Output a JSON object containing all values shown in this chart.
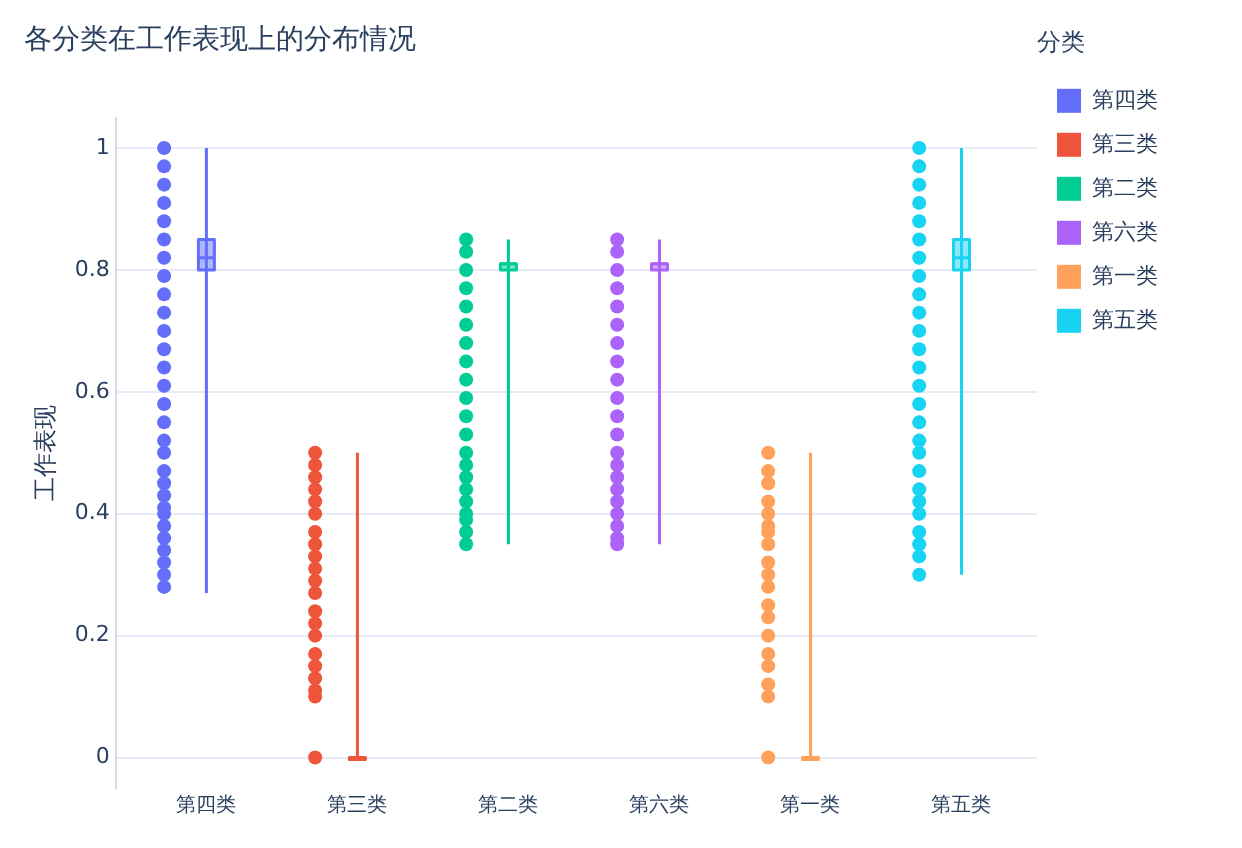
{
  "chart_data": {
    "type": "box",
    "title": "各分类在工作表现上的分布情况",
    "ylabel": "工作表现",
    "legend_title": "分类",
    "categories": [
      "第四类",
      "第三类",
      "第二类",
      "第六类",
      "第一类",
      "第五类"
    ],
    "colors": [
      "#636efa",
      "#ef553b",
      "#00cc96",
      "#ab63fa",
      "#ffa15a",
      "#19d3f3"
    ],
    "boxes": [
      {
        "low": 0.27,
        "q1": 0.8,
        "median": 0.82,
        "q3": 0.85,
        "high": 1
      },
      {
        "low": 0,
        "q1": 0,
        "median": 0,
        "q3": 0,
        "high": 0.5
      },
      {
        "low": 0.35,
        "q1": 0.8,
        "median": 0.81,
        "q3": 0.81,
        "high": 0.85
      },
      {
        "low": 0.35,
        "q1": 0.8,
        "median": 0.81,
        "q3": 0.81,
        "high": 0.85
      },
      {
        "low": 0,
        "q1": 0,
        "median": 0,
        "q3": 0,
        "high": 0.5
      },
      {
        "low": 0.3,
        "q1": 0.8,
        "median": 0.82,
        "q3": 0.85,
        "high": 1
      }
    ],
    "series": [
      {
        "name": "第四类",
        "type": "scatter",
        "color": "#636efa",
        "x": [
          "第四类",
          "第四类",
          "第四类",
          "第四类",
          "第四类",
          "第四类",
          "第四类",
          "第四类",
          "第四类",
          "第四类",
          "第四类",
          "第四类",
          "第四类",
          "第四类",
          "第四类",
          "第四类",
          "第四类",
          "第四类",
          "第四类",
          "第四类",
          "第四类",
          "第四类",
          "第四类",
          "第四类",
          "第四类",
          "第四类",
          "第四类",
          "第四类",
          "第四类"
        ],
        "values": [
          1,
          0.97,
          0.94,
          0.91,
          0.88,
          0.85,
          0.82,
          0.79,
          0.76,
          0.73,
          0.7,
          0.67,
          0.64,
          0.61,
          0.58,
          0.55,
          0.52,
          0.5,
          0.47,
          0.45,
          0.43,
          0.41,
          0.4,
          0.38,
          0.36,
          0.34,
          0.32,
          0.3,
          0.28
        ]
      },
      {
        "name": "第三类",
        "type": "scatter",
        "color": "#ef553b",
        "x": [
          "第三类",
          "第三类",
          "第三类",
          "第三类",
          "第三类",
          "第三类",
          "第三类",
          "第三类",
          "第三类",
          "第三类",
          "第三类",
          "第三类",
          "第三类",
          "第三类",
          "第三类",
          "第三类",
          "第三类",
          "第三类",
          "第三类",
          "第三类",
          "第三类"
        ],
        "values": [
          0,
          0.1,
          0.11,
          0.13,
          0.15,
          0.17,
          0.2,
          0.22,
          0.24,
          0.27,
          0.29,
          0.31,
          0.33,
          0.35,
          0.37,
          0.4,
          0.42,
          0.44,
          0.46,
          0.48,
          0.5
        ]
      },
      {
        "name": "第二类",
        "type": "scatter",
        "color": "#00cc96",
        "x": [
          "第二类",
          "第二类",
          "第二类",
          "第二类",
          "第二类",
          "第二类",
          "第二类",
          "第二类",
          "第二类",
          "第二类",
          "第二类",
          "第二类",
          "第二类",
          "第二类",
          "第二类",
          "第二类",
          "第二类",
          "第二类",
          "第二类",
          "第二类",
          "第二类"
        ],
        "values": [
          0.35,
          0.37,
          0.39,
          0.4,
          0.42,
          0.44,
          0.46,
          0.48,
          0.5,
          0.53,
          0.56,
          0.59,
          0.62,
          0.65,
          0.68,
          0.71,
          0.74,
          0.77,
          0.8,
          0.83,
          0.85
        ]
      },
      {
        "name": "第六类",
        "type": "scatter",
        "color": "#ab63fa",
        "x": [
          "第六类",
          "第六类",
          "第六类",
          "第六类",
          "第六类",
          "第六类",
          "第六类",
          "第六类",
          "第六类",
          "第六类",
          "第六类",
          "第六类",
          "第六类",
          "第六类",
          "第六类",
          "第六类",
          "第六类",
          "第六类",
          "第六类",
          "第六类",
          "第六类"
        ],
        "values": [
          0.35,
          0.36,
          0.38,
          0.4,
          0.42,
          0.44,
          0.46,
          0.48,
          0.5,
          0.53,
          0.56,
          0.59,
          0.62,
          0.65,
          0.68,
          0.71,
          0.74,
          0.77,
          0.8,
          0.83,
          0.85
        ]
      },
      {
        "name": "第一类",
        "type": "scatter",
        "color": "#ffa15a",
        "x": [
          "第一类",
          "第一类",
          "第一类",
          "第一类",
          "第一类",
          "第一类",
          "第一类",
          "第一类",
          "第一类",
          "第一类",
          "第一类",
          "第一类",
          "第一类",
          "第一类",
          "第一类",
          "第一类",
          "第一类",
          "第一类",
          "第一类"
        ],
        "values": [
          0,
          0.1,
          0.12,
          0.15,
          0.17,
          0.2,
          0.23,
          0.25,
          0.28,
          0.3,
          0.32,
          0.35,
          0.37,
          0.38,
          0.4,
          0.42,
          0.45,
          0.47,
          0.5
        ]
      },
      {
        "name": "第五类",
        "type": "scatter",
        "color": "#19d3f3",
        "x": [
          "第五类",
          "第五类",
          "第五类",
          "第五类",
          "第五类",
          "第五类",
          "第五类",
          "第五类",
          "第五类",
          "第五类",
          "第五类",
          "第五类",
          "第五类",
          "第五类",
          "第五类",
          "第五类",
          "第五类",
          "第五类",
          "第五类",
          "第五类",
          "第五类",
          "第五类",
          "第五类",
          "第五类",
          "第五类",
          "第五类"
        ],
        "values": [
          1,
          0.97,
          0.94,
          0.91,
          0.88,
          0.85,
          0.82,
          0.79,
          0.76,
          0.73,
          0.7,
          0.67,
          0.64,
          0.61,
          0.58,
          0.55,
          0.52,
          0.5,
          0.47,
          0.44,
          0.42,
          0.4,
          0.37,
          0.35,
          0.33,
          0.3
        ]
      }
    ],
    "ylim": [
      -0.05,
      1.05
    ],
    "yticks": [
      0,
      0.2,
      0.4,
      0.6,
      0.8,
      1
    ],
    "grid": "y",
    "legend": "top right",
    "marker": "circle"
  }
}
